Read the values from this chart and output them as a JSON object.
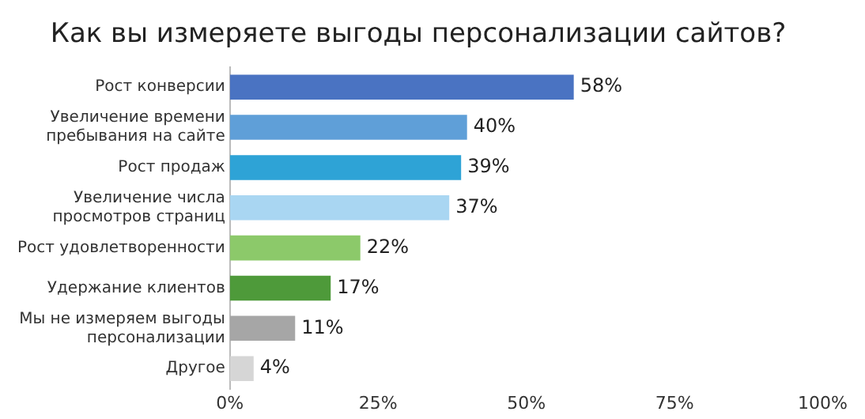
{
  "chart_data": {
    "type": "bar",
    "orientation": "horizontal",
    "title": "Как вы измеряете выгоды персонализации сайтов?",
    "categories": [
      "Рост конверсии",
      "Увеличение времени\nпребывания на сайте",
      "Рост продаж",
      "Увеличение числа\nпросмотров страниц",
      "Рост удовлетворенности",
      "Удержание клиентов",
      "Мы не измеряем выгоды\nперсонализации",
      "Другое"
    ],
    "values": [
      58,
      40,
      39,
      37,
      22,
      17,
      11,
      4
    ],
    "colors": [
      "#4a73c2",
      "#5f9fd8",
      "#2ea3d6",
      "#a9d6f2",
      "#8cc96a",
      "#4e9a3a",
      "#a6a6a6",
      "#d6d6d6"
    ],
    "value_labels": [
      "58%",
      "40%",
      "39%",
      "37%",
      "22%",
      "17%",
      "11%",
      "4%"
    ],
    "xlim": [
      0,
      100
    ],
    "xticks": [
      {
        "value": 0,
        "label": "0%"
      },
      {
        "value": 25,
        "label": "25%"
      },
      {
        "value": 50,
        "label": "50%"
      },
      {
        "value": 75,
        "label": "75%"
      },
      {
        "value": 100,
        "label": "100%"
      }
    ],
    "grid": false,
    "legend": false
  }
}
